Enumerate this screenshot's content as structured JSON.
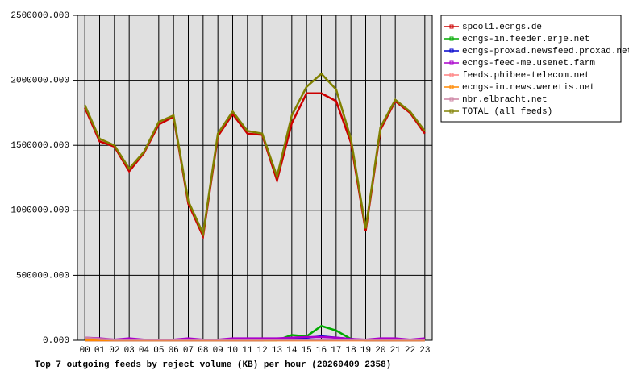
{
  "chart_data": {
    "type": "line",
    "title": "Top 7 outgoing feeds by reject volume (KB) per hour (20260409 2358)",
    "categories": [
      "00",
      "01",
      "02",
      "03",
      "04",
      "05",
      "06",
      "07",
      "08",
      "09",
      "10",
      "11",
      "12",
      "13",
      "14",
      "15",
      "16",
      "17",
      "18",
      "19",
      "20",
      "21",
      "22",
      "23"
    ],
    "ylim": [
      0,
      2500000
    ],
    "yticks": [
      {
        "value": 0,
        "label": "0.000"
      },
      {
        "value": 500000,
        "label": "500000.000"
      },
      {
        "value": 1000000,
        "label": "1000000.000"
      },
      {
        "value": 1500000,
        "label": "1500000.000"
      },
      {
        "value": 2000000,
        "label": "2000000.000"
      },
      {
        "value": 2500000,
        "label": "2500000.000"
      }
    ],
    "grid": true,
    "legend": "right",
    "series": [
      {
        "name": "spool1.ecngs.de",
        "color": "#cc0000",
        "values": [
          1790000,
          1530000,
          1490000,
          1300000,
          1440000,
          1660000,
          1720000,
          1050000,
          800000,
          1570000,
          1740000,
          1590000,
          1580000,
          1230000,
          1670000,
          1900000,
          1900000,
          1840000,
          1520000,
          840000,
          1620000,
          1840000,
          1750000,
          1590000
        ]
      },
      {
        "name": "ecngs-in.feeder.erje.net",
        "color": "#00aa00",
        "values": [
          0,
          0,
          0,
          0,
          0,
          0,
          0,
          0,
          0,
          0,
          0,
          0,
          0,
          0,
          40000,
          30000,
          110000,
          75000,
          10000,
          0,
          0,
          0,
          0,
          0
        ]
      },
      {
        "name": "ecngs-proxad.newsfeed.proxad.net",
        "color": "#0000cc",
        "values": [
          0,
          0,
          0,
          0,
          0,
          0,
          0,
          0,
          0,
          0,
          0,
          0,
          0,
          10000,
          10000,
          20000,
          30000,
          20000,
          10000,
          0,
          0,
          0,
          0,
          0
        ]
      },
      {
        "name": "ecngs-feed-me.usenet.farm",
        "color": "#aa00cc",
        "values": [
          20000,
          15000,
          5000,
          15000,
          5000,
          5000,
          5000,
          15000,
          5000,
          5000,
          15000,
          15000,
          15000,
          15000,
          20000,
          25000,
          25000,
          20000,
          10000,
          5000,
          15000,
          15000,
          5000,
          15000
        ]
      },
      {
        "name": "feeds.phibee-telecom.net",
        "color": "#ff8080",
        "values": [
          0,
          0,
          0,
          0,
          0,
          0,
          0,
          0,
          0,
          0,
          0,
          0,
          0,
          0,
          0,
          0,
          0,
          0,
          0,
          0,
          0,
          0,
          0,
          0
        ]
      },
      {
        "name": "ecngs-in.news.weretis.net",
        "color": "#ff8800",
        "values": [
          0,
          0,
          0,
          0,
          0,
          0,
          0,
          0,
          0,
          0,
          0,
          0,
          0,
          0,
          0,
          0,
          0,
          0,
          0,
          0,
          0,
          0,
          0,
          0
        ]
      },
      {
        "name": "nbr.elbracht.net",
        "color": "#cc80a0",
        "values": [
          20000,
          10000,
          5000,
          5000,
          5000,
          5000,
          5000,
          5000,
          5000,
          5000,
          5000,
          5000,
          5000,
          5000,
          5000,
          5000,
          5000,
          5000,
          5000,
          5000,
          5000,
          5000,
          5000,
          5000
        ]
      },
      {
        "name": "TOTAL (all feeds)",
        "color": "#808000",
        "values": [
          1810000,
          1550000,
          1500000,
          1320000,
          1450000,
          1680000,
          1730000,
          1070000,
          820000,
          1590000,
          1760000,
          1610000,
          1590000,
          1260000,
          1730000,
          1950000,
          2050000,
          1930000,
          1550000,
          860000,
          1640000,
          1850000,
          1760000,
          1610000
        ]
      }
    ]
  }
}
